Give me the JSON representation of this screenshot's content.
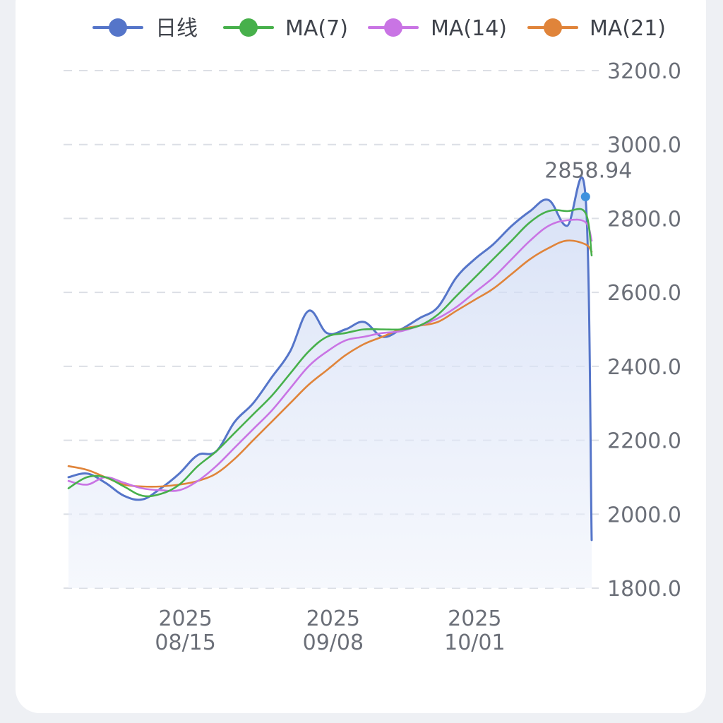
{
  "chart_data": {
    "type": "line",
    "title": "",
    "xlabel": "",
    "ylabel": "",
    "ylim": [
      1800,
      3200
    ],
    "y_ticks": [
      "3200.0",
      "3000.0",
      "2800.0",
      "2600.0",
      "2400.0",
      "2200.0",
      "2000.0",
      "1800.0"
    ],
    "x_tick_labels": [
      {
        "date": "2025-08-15",
        "year": "2025",
        "md": "08/15"
      },
      {
        "date": "2025-09-08",
        "year": "2025",
        "md": "09/08"
      },
      {
        "date": "2025-10-01",
        "year": "2025",
        "md": "10/01"
      }
    ],
    "x": [
      "2025-07-27",
      "2025-07-30",
      "2025-08-02",
      "2025-08-05",
      "2025-08-08",
      "2025-08-11",
      "2025-08-14",
      "2025-08-17",
      "2025-08-20",
      "2025-08-23",
      "2025-08-26",
      "2025-08-29",
      "2025-09-01",
      "2025-09-04",
      "2025-09-07",
      "2025-09-10",
      "2025-09-13",
      "2025-09-16",
      "2025-09-19",
      "2025-09-22",
      "2025-09-25",
      "2025-09-28",
      "2025-10-01",
      "2025-10-04",
      "2025-10-07",
      "2025-10-10",
      "2025-10-13",
      "2025-10-16",
      "2025-10-19",
      "2025-10-20"
    ],
    "grid": true,
    "legend_position": "top",
    "series": [
      {
        "name": "日线",
        "color": "#5575c9",
        "values": [
          2100,
          2110,
          2085,
          2050,
          2040,
          2070,
          2110,
          2160,
          2170,
          2250,
          2300,
          2370,
          2440,
          2550,
          2490,
          2500,
          2520,
          2480,
          2500,
          2530,
          2560,
          2640,
          2690,
          2730,
          2780,
          2820,
          2850,
          2780,
          2858.94,
          1930
        ]
      },
      {
        "name": "MA(7)",
        "color": "#47b04b",
        "values": [
          2070,
          2100,
          2100,
          2075,
          2050,
          2055,
          2080,
          2130,
          2170,
          2220,
          2270,
          2320,
          2380,
          2440,
          2480,
          2490,
          2500,
          2500,
          2500,
          2510,
          2540,
          2590,
          2640,
          2690,
          2740,
          2790,
          2820,
          2820,
          2815,
          2700
        ]
      },
      {
        "name": "MA(14)",
        "color": "#c974e4",
        "values": [
          2090,
          2080,
          2100,
          2085,
          2070,
          2065,
          2065,
          2090,
          2130,
          2180,
          2230,
          2280,
          2340,
          2400,
          2440,
          2470,
          2480,
          2490,
          2495,
          2510,
          2530,
          2560,
          2600,
          2640,
          2690,
          2740,
          2780,
          2795,
          2790,
          2740
        ]
      },
      {
        "name": "MA(21)",
        "color": "#e0843a",
        "values": [
          2130,
          2120,
          2100,
          2080,
          2075,
          2075,
          2080,
          2090,
          2110,
          2150,
          2200,
          2250,
          2300,
          2350,
          2390,
          2430,
          2460,
          2480,
          2500,
          2510,
          2520,
          2550,
          2580,
          2610,
          2650,
          2690,
          2720,
          2740,
          2730,
          2710
        ]
      }
    ],
    "annotation": {
      "label": "2858.94",
      "value": 2858.94,
      "series": "日线"
    }
  }
}
